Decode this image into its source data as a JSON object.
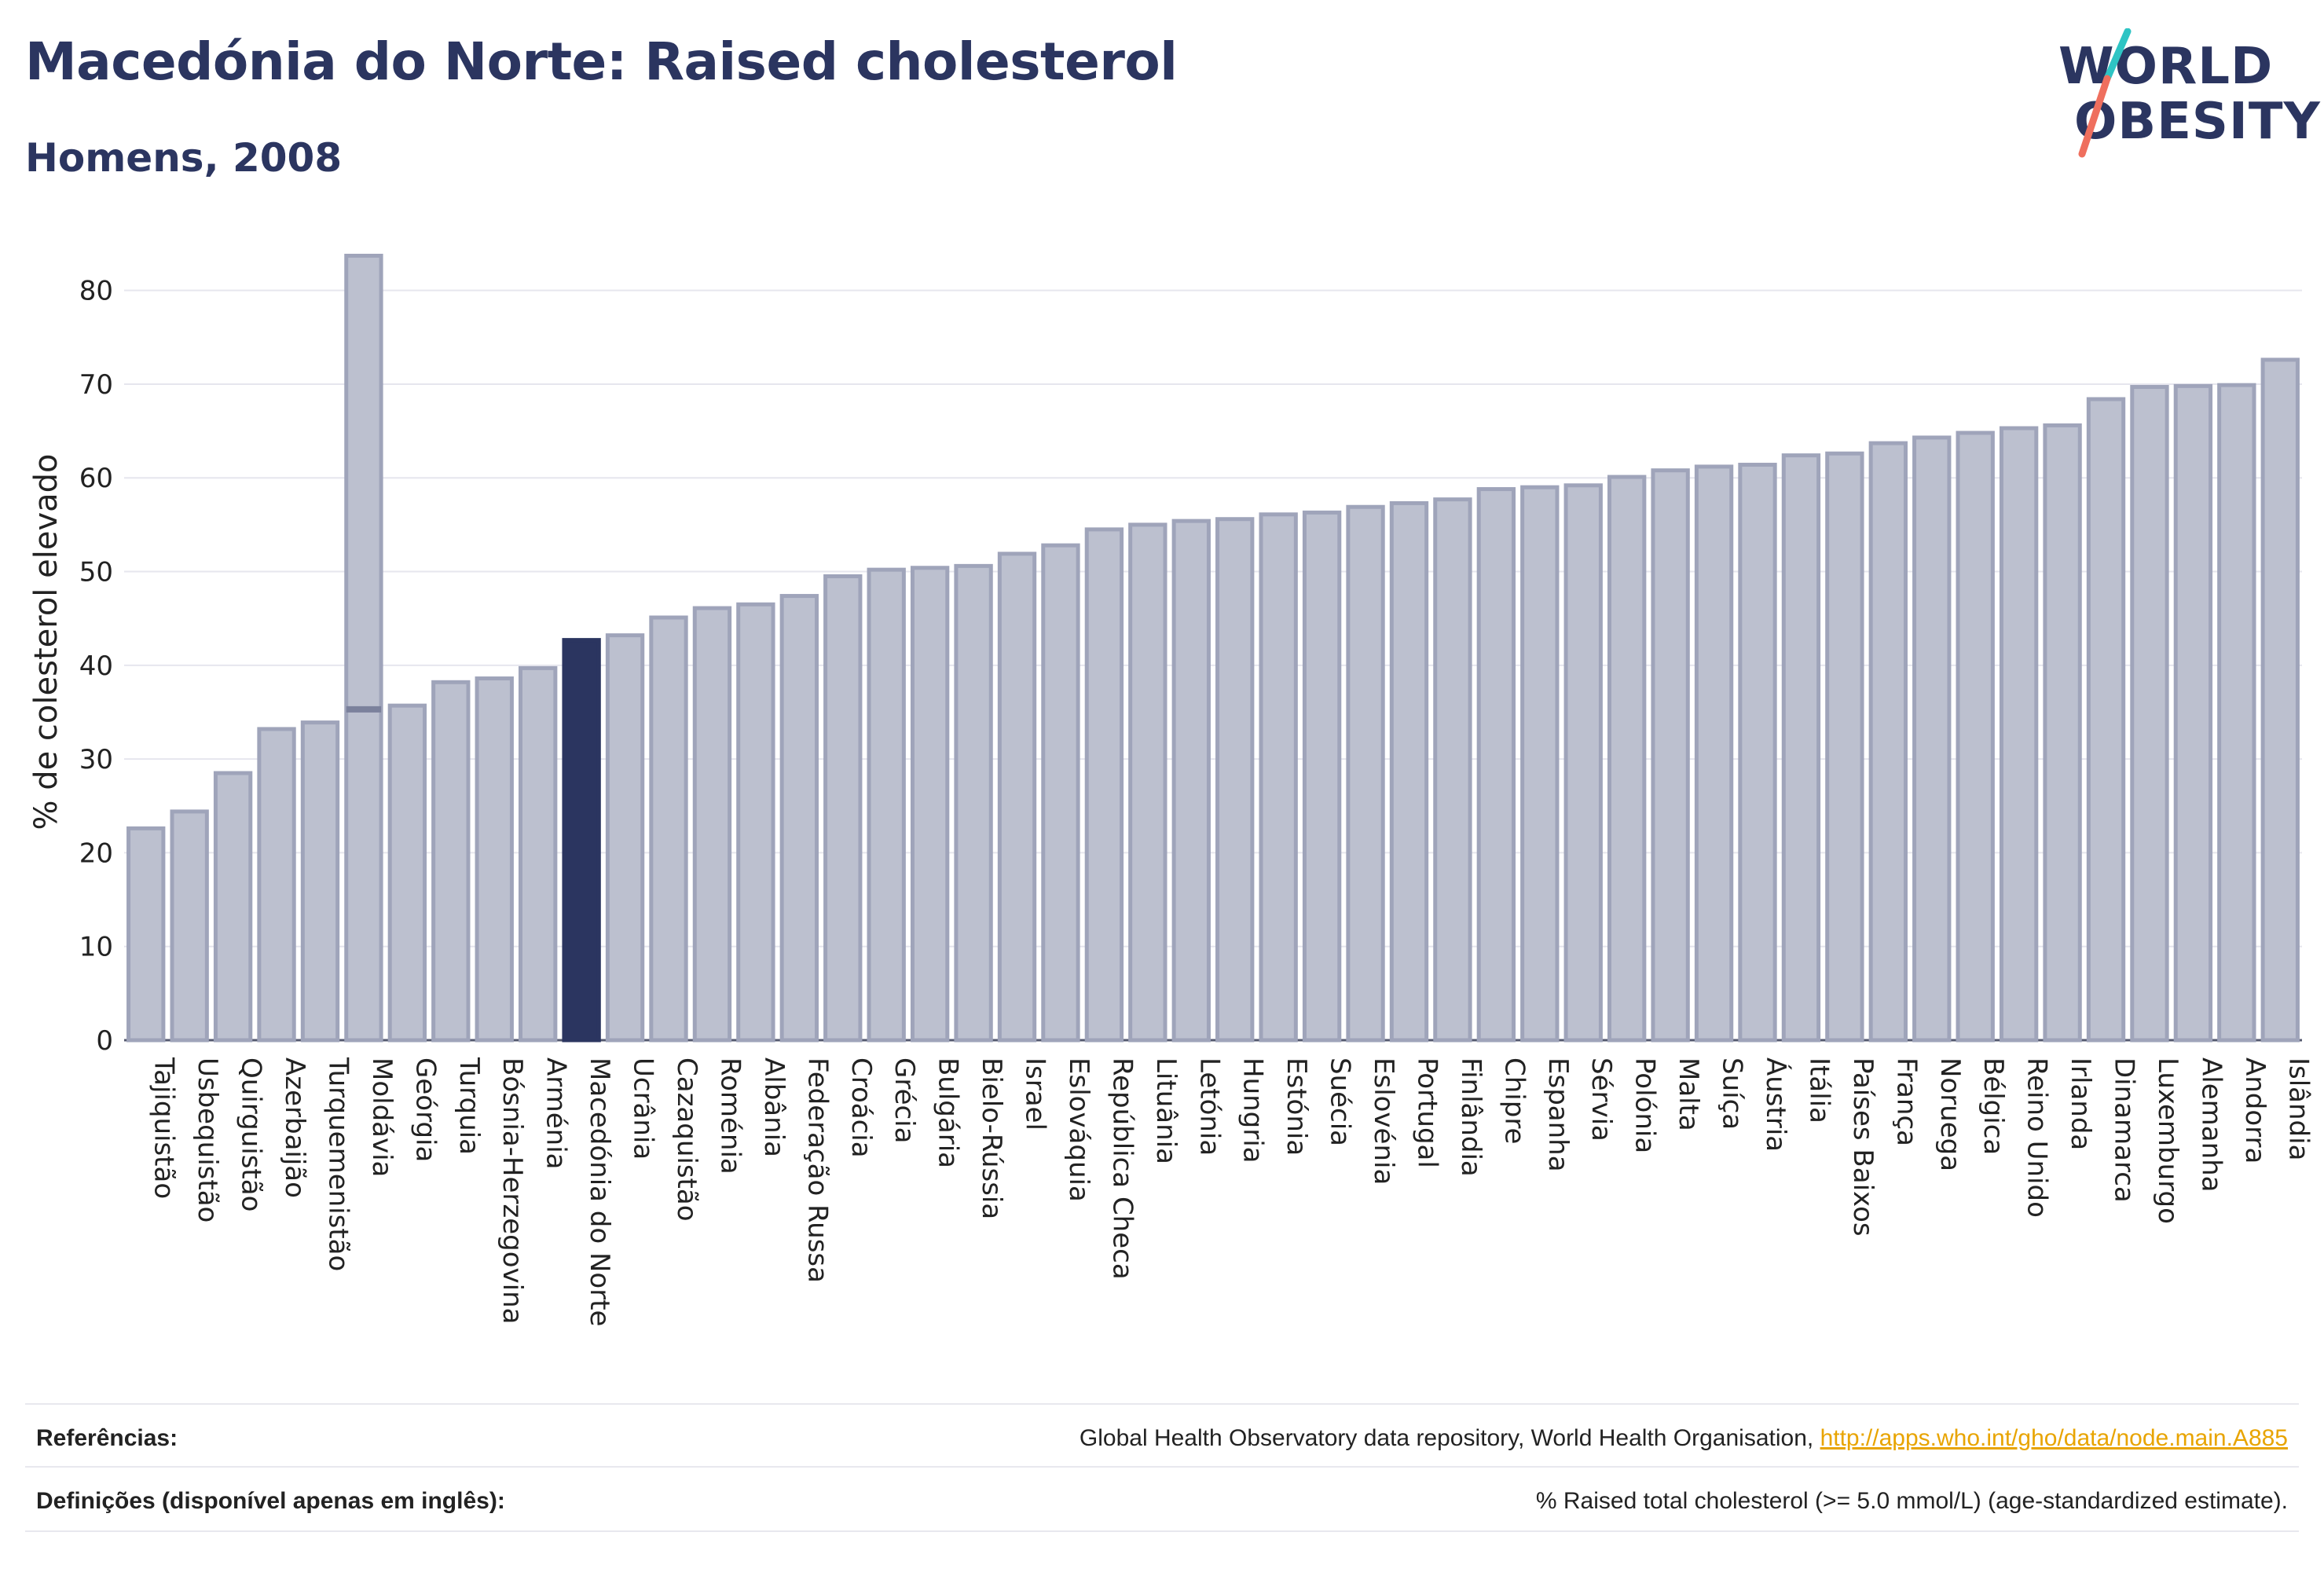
{
  "header": {
    "title": "Macedónia do Norte: Raised cholesterol",
    "subtitle": "Homens, 2008"
  },
  "logo": {
    "line1": "WORLD",
    "line2": "OBESITY"
  },
  "colors": {
    "highlight": "#2b3560",
    "bar_fill": "#bcc0cf",
    "bar_stroke": "#9fa4ba",
    "grid": "#e6e6ee",
    "axis_text": "#222222",
    "logo_teal": "#2ec4c4",
    "logo_coral": "#ef6f5e"
  },
  "chart_data": {
    "type": "bar",
    "ylabel": "% de colesterol elevado",
    "ylim": [
      0,
      85
    ],
    "yticks": [
      0,
      10,
      20,
      30,
      40,
      50,
      60,
      70,
      80
    ],
    "grid": true,
    "highlight_category": "Macedónia do Norte",
    "range_bar": {
      "category": "Moldávia",
      "low": 35.3,
      "high": 83.7
    },
    "categories": [
      "Tajiquistão",
      "Usbequistão",
      "Quirguistão",
      "Azerbaijão",
      "Turquemenistão",
      "Moldávia",
      "Geórgia",
      "Turquia",
      "Bósnia-Herzegovina",
      "Arménia",
      "Macedónia do Norte",
      "Ucrânia",
      "Cazaquistão",
      "Roménia",
      "Albânia",
      "Federação Russa",
      "Croácia",
      "Grécia",
      "Bulgária",
      "Bielo-Rússia",
      "Israel",
      "Eslováquia",
      "República Checa",
      "Lituânia",
      "Letónia",
      "Hungria",
      "Estónia",
      "Suécia",
      "Eslovénia",
      "Portugal",
      "Finlândia",
      "Chipre",
      "Espanha",
      "Sérvia",
      "Polónia",
      "Malta",
      "Suíça",
      "Áustria",
      "Itália",
      "Países Baixos",
      "França",
      "Noruega",
      "Bélgica",
      "Reino Unido",
      "Irlanda",
      "Dinamarca",
      "Luxemburgo",
      "Alemanha",
      "Andorra",
      "Islândia"
    ],
    "values": [
      22.6,
      24.4,
      28.5,
      33.2,
      33.9,
      35.3,
      35.7,
      38.2,
      38.6,
      39.7,
      42.7,
      43.2,
      45.1,
      46.1,
      46.5,
      47.4,
      49.5,
      50.2,
      50.4,
      50.6,
      51.9,
      52.8,
      54.5,
      55.0,
      55.4,
      55.6,
      56.1,
      56.3,
      56.9,
      57.3,
      57.7,
      58.8,
      59.0,
      59.2,
      60.1,
      60.8,
      61.2,
      61.4,
      62.4,
      62.6,
      63.7,
      64.3,
      64.8,
      65.3,
      65.6,
      68.4,
      69.7,
      69.8,
      69.9,
      72.6
    ]
  },
  "footer": {
    "references_label": "Referências:",
    "references_text": "Global Health Observatory data repository, World Health Organisation, ",
    "references_link": "http://apps.who.int/gho/data/node.main.A885",
    "definitions_label": "Definições (disponível apenas em inglês):",
    "definitions_text": "% Raised total cholesterol (>= 5.0 mmol/L) (age-standardized estimate)."
  }
}
